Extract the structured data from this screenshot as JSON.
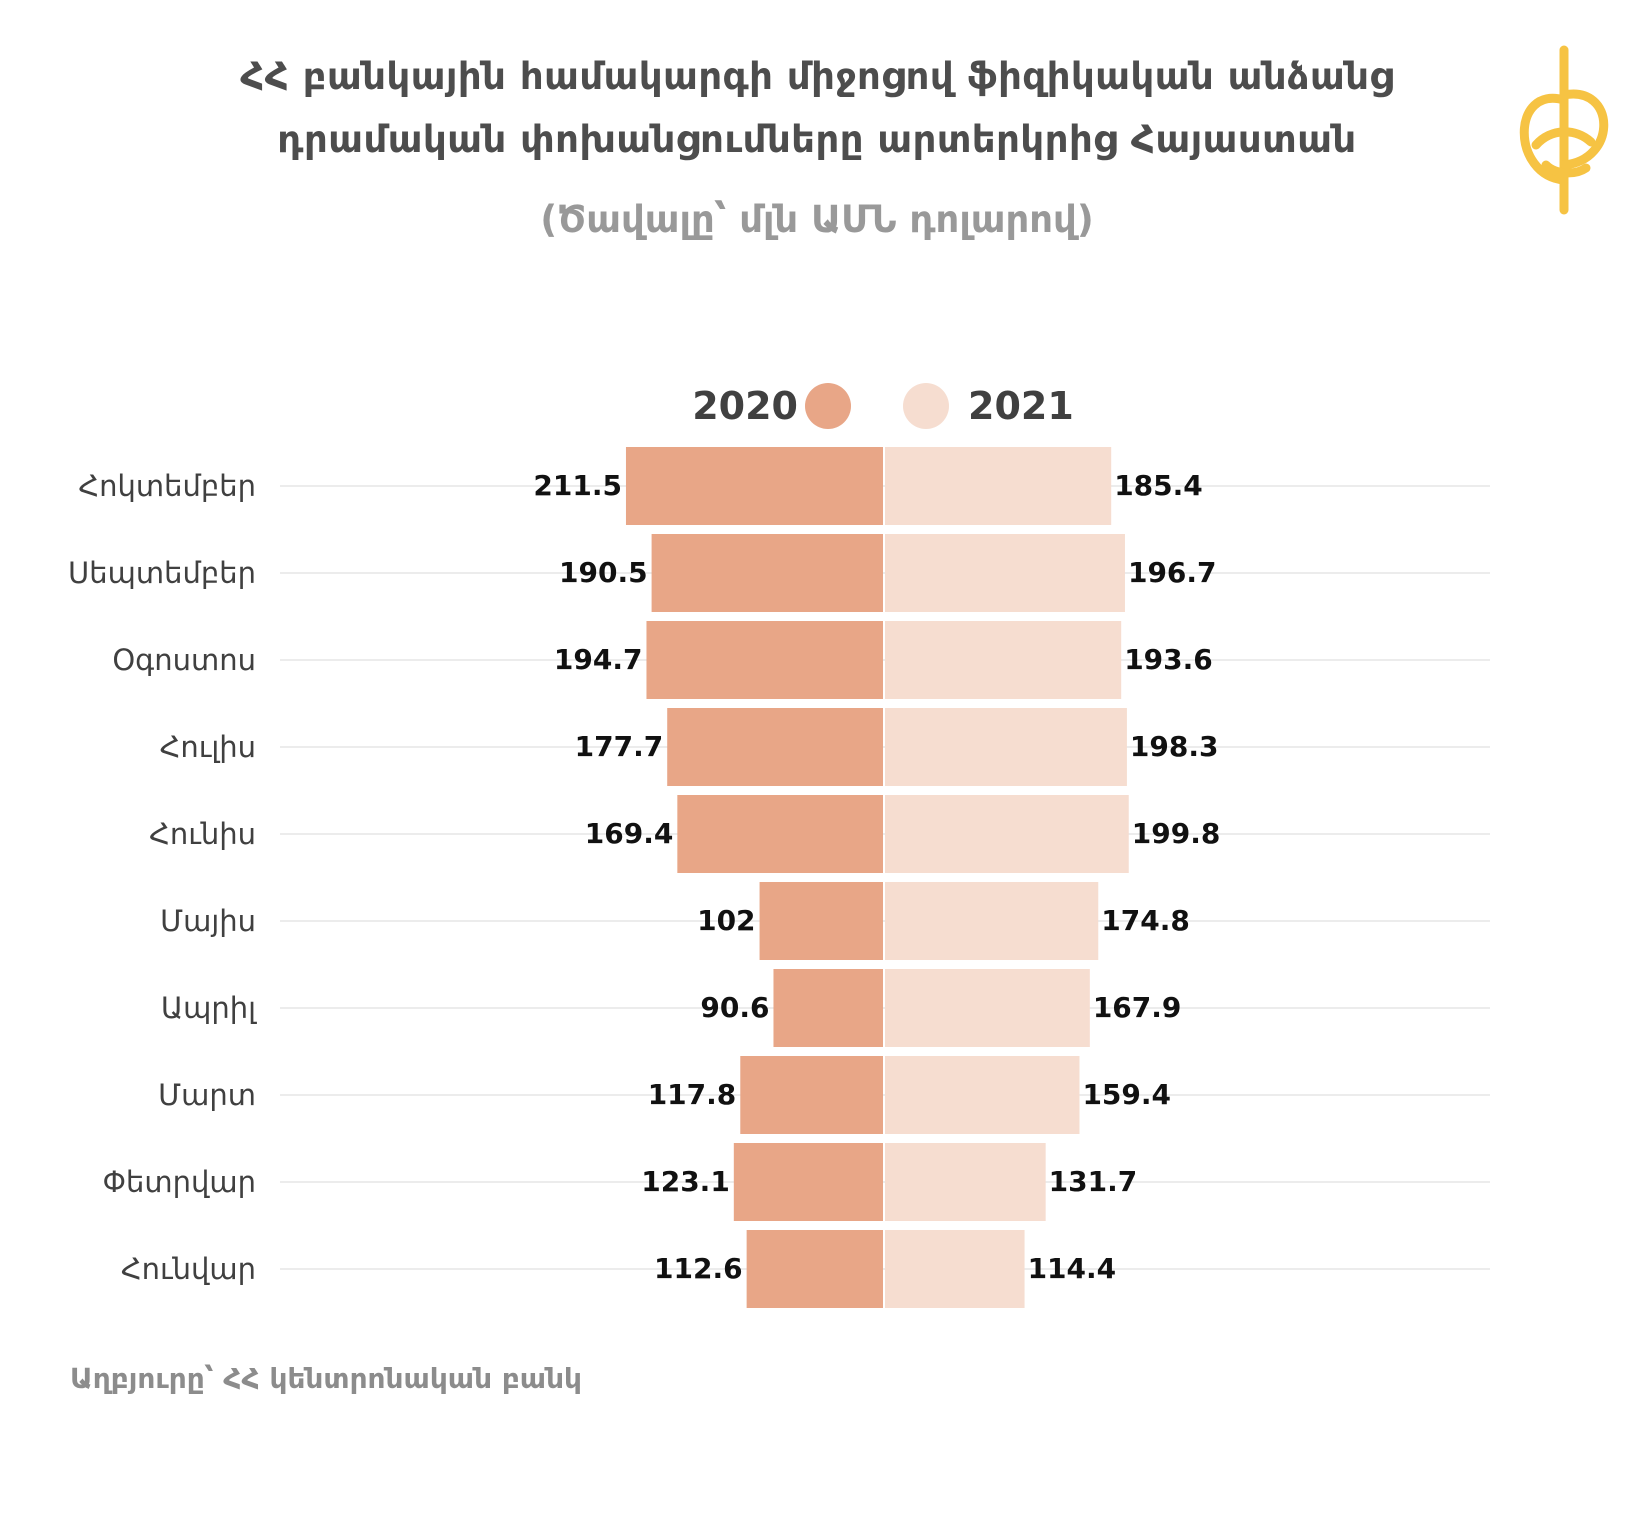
{
  "title_line1": "ՀՀ բանկային համակարգի միջոցով ֆիզիկական անձանց",
  "title_line2": "դրամական փոխանցումները արտերկրից Հայաստան",
  "subtitle": "(Ծավալը՝ մլն ԱՄՆ դոլարով)",
  "source": "Աղբյուրը՝ ՀՀ կենտրոնական բանկ",
  "colors": {
    "series_2020": "#e8a687",
    "series_2021": "#f6ddd0",
    "gridline": "#e6e6e6",
    "logo": "#f6c343"
  },
  "chart_data": {
    "type": "bar",
    "orientation": "horizontal-diverging",
    "categories": [
      "Հոկտեմբեր",
      "Սեպտեմբեր",
      "Օգոստոս",
      "Հուլիս",
      "Հունիս",
      "Մայիս",
      "Ապրիլ",
      "Մարտ",
      "Փետրվար",
      "Հունվար"
    ],
    "series": [
      {
        "name": "2020",
        "values": [
          211.5,
          190.5,
          194.7,
          177.7,
          169.4,
          102,
          90.6,
          117.8,
          123.1,
          112.6
        ],
        "labels": [
          "211.5",
          "190.5",
          "194.7",
          "177.7",
          "169.4",
          "102",
          "90.6",
          "117.8",
          "123.1",
          "112.6"
        ]
      },
      {
        "name": "2021",
        "values": [
          185.4,
          196.7,
          193.6,
          198.3,
          199.8,
          174.8,
          167.9,
          159.4,
          131.7,
          114.4
        ],
        "labels": [
          "185.4",
          "196.7",
          "193.6",
          "198.3",
          "199.8",
          "174.8",
          "167.9",
          "159.4",
          "131.7",
          "114.4"
        ]
      }
    ],
    "legend_position": "top-center",
    "grid": true
  }
}
